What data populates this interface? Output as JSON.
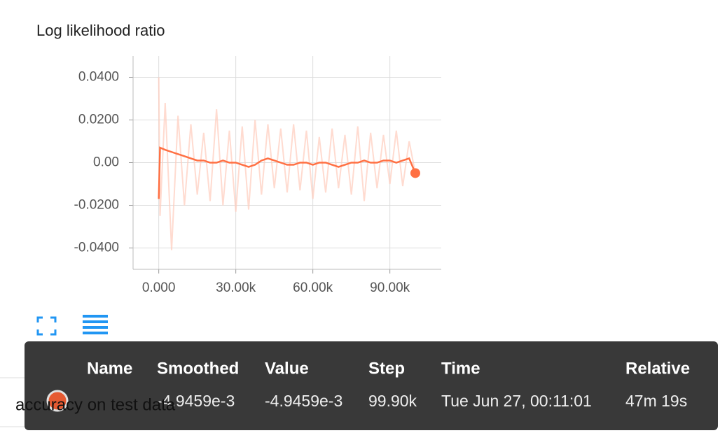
{
  "chart_data": {
    "type": "line",
    "title": "Log likelihood ratio",
    "x": [
      0,
      500,
      2500,
      5000,
      7500,
      10000,
      12500,
      15000,
      17500,
      20000,
      22500,
      25000,
      27500,
      30000,
      32500,
      35000,
      37500,
      40000,
      42500,
      45000,
      47500,
      50000,
      52500,
      55000,
      57500,
      60000,
      62500,
      65000,
      67500,
      70000,
      72500,
      75000,
      77500,
      80000,
      82500,
      85000,
      87500,
      90000,
      92500,
      95000,
      97500,
      99900
    ],
    "series": [
      {
        "name": "Smoothed",
        "color": "#ff7043",
        "values": [
          -0.017,
          0.007,
          0.006,
          0.005,
          0.004,
          0.003,
          0.002,
          0.001,
          0.001,
          0,
          0,
          0.001,
          0,
          0,
          -0.001,
          -0.002,
          -0.001,
          0.001,
          0.002,
          0.001,
          0,
          -0.001,
          -0.001,
          0,
          0,
          -0.001,
          0,
          0,
          -0.001,
          -0.002,
          -0.001,
          0,
          0,
          0.001,
          0,
          0,
          0.001,
          0.001,
          0,
          0.001,
          0.002,
          -0.0049
        ]
      },
      {
        "name": "Value",
        "color": "#ffccbc",
        "values": [
          0.04,
          -0.025,
          0.028,
          -0.041,
          0.022,
          -0.02,
          0.018,
          -0.015,
          0.014,
          -0.018,
          0.025,
          -0.02,
          0.015,
          -0.023,
          0.017,
          -0.022,
          0.02,
          -0.015,
          0.018,
          -0.012,
          0.016,
          -0.014,
          0.018,
          -0.013,
          0.015,
          -0.017,
          0.012,
          -0.014,
          0.016,
          -0.012,
          0.013,
          -0.015,
          0.017,
          -0.018,
          0.014,
          -0.012,
          0.013,
          -0.01,
          0.015,
          -0.011,
          0.01,
          -0.0049
        ]
      }
    ],
    "xlim": [
      -10000,
      110000
    ],
    "ylim": [
      -0.05,
      0.05
    ],
    "xticks": [
      {
        "value": 0,
        "label": "0.000"
      },
      {
        "value": 30000,
        "label": "30.00k"
      },
      {
        "value": 60000,
        "label": "60.00k"
      },
      {
        "value": 90000,
        "label": "90.00k"
      }
    ],
    "yticks": [
      {
        "value": 0.04,
        "label": "0.0400"
      },
      {
        "value": 0.02,
        "label": "0.0200"
      },
      {
        "value": 0,
        "label": "0.00"
      },
      {
        "value": -0.02,
        "label": "-0.0200"
      },
      {
        "value": -0.04,
        "label": "-0.0400"
      }
    ],
    "grid": true
  },
  "tooltip": {
    "headers": [
      "Name",
      "Smoothed",
      "Value",
      "Step",
      "Time",
      "Relative"
    ],
    "row": [
      "-4.9459e-3",
      "-4.9459e-3",
      "99.90k",
      "Tue Jun 27, 00:11:01",
      "47m 19s"
    ]
  },
  "run_name": "accuracy on test data"
}
